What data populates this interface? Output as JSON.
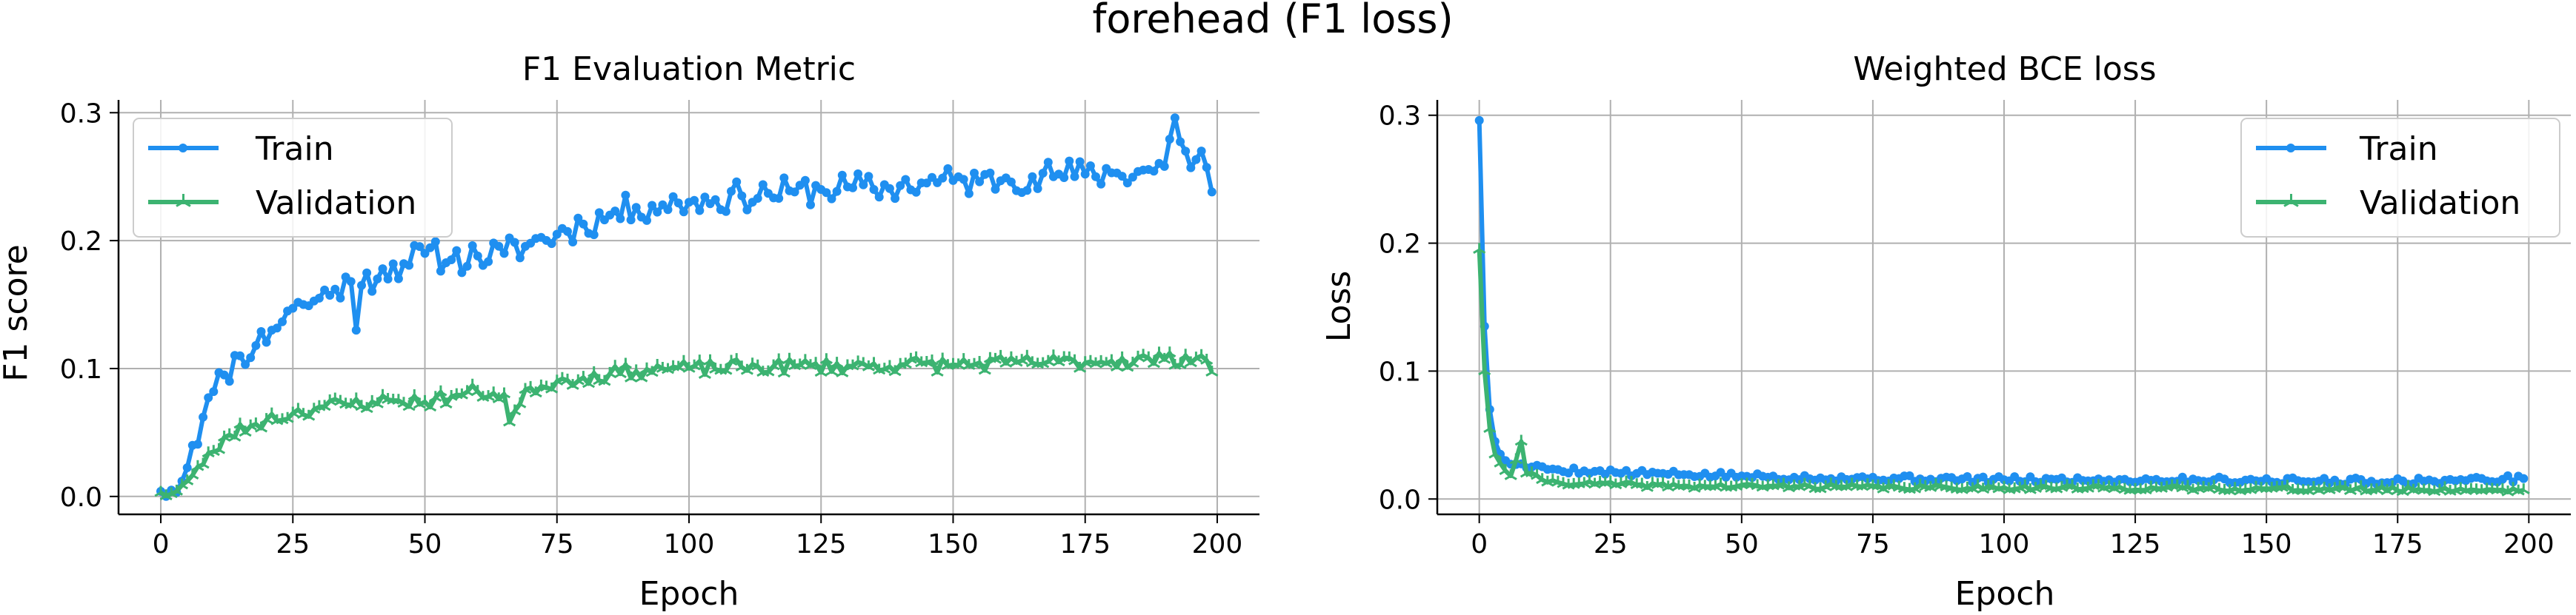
{
  "figure_title": "forehead (F1 loss)",
  "colors": {
    "train": "#1f8ff0",
    "validation": "#3cb371",
    "grid": "#b0b0b0",
    "axis": "#000000"
  },
  "chart_data": [
    {
      "type": "line",
      "title": "F1 Evaluation Metric",
      "xlabel": "Epoch",
      "ylabel": "F1 score",
      "xlim": [
        -8,
        208
      ],
      "ylim": [
        -0.014,
        0.31
      ],
      "xticks": [
        0,
        25,
        50,
        75,
        100,
        125,
        150,
        175,
        200
      ],
      "yticks": [
        0.0,
        0.1,
        0.2,
        0.3
      ],
      "ytick_labels": [
        "0.0",
        "0.1",
        "0.2",
        "0.3"
      ],
      "grid": true,
      "legend_position": "upper-left",
      "series": [
        {
          "name": "Train",
          "key": "train",
          "marker": "circle",
          "anchors": [
            [
              0,
              0.004
            ],
            [
              2,
              0.005
            ],
            [
              4,
              0.012
            ],
            [
              6,
              0.04
            ],
            [
              8,
              0.062
            ],
            [
              10,
              0.082
            ],
            [
              12,
              0.095
            ],
            [
              15,
              0.11
            ],
            [
              18,
              0.118
            ],
            [
              21,
              0.13
            ],
            [
              24,
              0.145
            ],
            [
              27,
              0.15
            ],
            [
              30,
              0.155
            ],
            [
              33,
              0.162
            ],
            [
              36,
              0.168
            ],
            [
              37,
              0.13
            ],
            [
              38,
              0.165
            ],
            [
              42,
              0.178
            ],
            [
              46,
              0.182
            ],
            [
              50,
              0.19
            ],
            [
              55,
              0.185
            ],
            [
              60,
              0.188
            ],
            [
              65,
              0.19
            ],
            [
              70,
              0.198
            ],
            [
              75,
              0.205
            ],
            [
              80,
              0.213
            ],
            [
              85,
              0.22
            ],
            [
              90,
              0.226
            ],
            [
              95,
              0.228
            ],
            [
              100,
              0.23
            ],
            [
              105,
              0.232
            ],
            [
              110,
              0.235
            ],
            [
              115,
              0.237
            ],
            [
              120,
              0.238
            ],
            [
              125,
              0.24
            ],
            [
              130,
              0.242
            ],
            [
              135,
              0.24
            ],
            [
              140,
              0.243
            ],
            [
              145,
              0.245
            ],
            [
              150,
              0.247
            ],
            [
              155,
              0.246
            ],
            [
              160,
              0.249
            ],
            [
              165,
              0.25
            ],
            [
              170,
              0.252
            ],
            [
              175,
              0.252
            ],
            [
              180,
              0.253
            ],
            [
              185,
              0.254
            ],
            [
              190,
              0.258
            ],
            [
              192,
              0.296
            ],
            [
              195,
              0.257
            ],
            [
              197,
              0.27
            ],
            [
              199,
              0.238
            ]
          ],
          "noise": 0.012,
          "seed": 11
        },
        {
          "name": "Validation",
          "key": "validation",
          "marker": "tri",
          "anchors": [
            [
              0,
              0.003
            ],
            [
              3,
              0.004
            ],
            [
              5,
              0.012
            ],
            [
              8,
              0.025
            ],
            [
              10,
              0.035
            ],
            [
              13,
              0.048
            ],
            [
              17,
              0.055
            ],
            [
              20,
              0.06
            ],
            [
              25,
              0.065
            ],
            [
              30,
              0.07
            ],
            [
              35,
              0.072
            ],
            [
              40,
              0.074
            ],
            [
              45,
              0.075
            ],
            [
              50,
              0.074
            ],
            [
              55,
              0.078
            ],
            [
              60,
              0.082
            ],
            [
              65,
              0.08
            ],
            [
              66,
              0.058
            ],
            [
              70,
              0.085
            ],
            [
              75,
              0.09
            ],
            [
              80,
              0.093
            ],
            [
              85,
              0.096
            ],
            [
              90,
              0.098
            ],
            [
              95,
              0.1
            ],
            [
              100,
              0.1
            ],
            [
              110,
              0.101
            ],
            [
              120,
              0.102
            ],
            [
              130,
              0.102
            ],
            [
              140,
              0.103
            ],
            [
              150,
              0.103
            ],
            [
              160,
              0.104
            ],
            [
              170,
              0.105
            ],
            [
              180,
              0.106
            ],
            [
              190,
              0.107
            ],
            [
              197,
              0.11
            ],
            [
              199,
              0.097
            ]
          ],
          "noise": 0.006,
          "seed": 23
        }
      ]
    },
    {
      "type": "line",
      "title": "Weighted BCE loss",
      "xlabel": "Epoch",
      "ylabel": "Loss",
      "xlim": [
        -8,
        208
      ],
      "ylim": [
        -0.012,
        0.312
      ],
      "xticks": [
        0,
        25,
        50,
        75,
        100,
        125,
        150,
        175,
        200
      ],
      "yticks": [
        0.0,
        0.1,
        0.2,
        0.3
      ],
      "ytick_labels": [
        "0.0",
        "0.1",
        "0.2",
        "0.3"
      ],
      "grid": true,
      "legend_position": "upper-right",
      "series": [
        {
          "name": "Train",
          "key": "train",
          "marker": "circle",
          "anchors": [
            [
              0,
              0.296
            ],
            [
              1,
              0.135
            ],
            [
              2,
              0.07
            ],
            [
              3,
              0.045
            ],
            [
              4,
              0.035
            ],
            [
              5,
              0.03
            ],
            [
              7,
              0.027
            ],
            [
              10,
              0.025
            ],
            [
              15,
              0.023
            ],
            [
              20,
              0.022
            ],
            [
              30,
              0.02
            ],
            [
              40,
              0.019
            ],
            [
              50,
              0.018
            ],
            [
              60,
              0.017
            ],
            [
              80,
              0.016
            ],
            [
              100,
              0.015
            ],
            [
              120,
              0.015
            ],
            [
              140,
              0.015
            ],
            [
              160,
              0.014
            ],
            [
              180,
              0.014
            ],
            [
              199,
              0.016
            ]
          ],
          "noise": 0.0025,
          "seed": 5
        },
        {
          "name": "Validation",
          "key": "validation",
          "marker": "tri",
          "anchors": [
            [
              0,
              0.195
            ],
            [
              1,
              0.1
            ],
            [
              2,
              0.055
            ],
            [
              3,
              0.035
            ],
            [
              4,
              0.028
            ],
            [
              5,
              0.022
            ],
            [
              6,
              0.018
            ],
            [
              8,
              0.045
            ],
            [
              9,
              0.02
            ],
            [
              12,
              0.015
            ],
            [
              15,
              0.013
            ],
            [
              20,
              0.012
            ],
            [
              30,
              0.011
            ],
            [
              40,
              0.01
            ],
            [
              60,
              0.01
            ],
            [
              80,
              0.009
            ],
            [
              100,
              0.009
            ],
            [
              150,
              0.008
            ],
            [
              199,
              0.007
            ]
          ],
          "noise": 0.002,
          "seed": 41
        }
      ]
    }
  ]
}
